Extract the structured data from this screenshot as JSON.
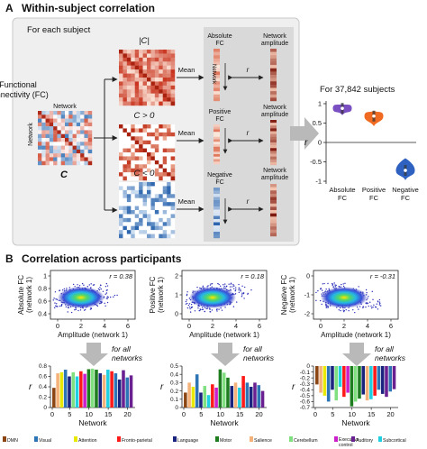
{
  "panel_a": {
    "letter": "A",
    "title": "Within-subject correlation",
    "box_title": "For each subject",
    "fc_label_line1": "Functional",
    "fc_label_line2": "connectivity (FC)",
    "matrix_axis": "Network",
    "c_symbol": "C",
    "abs_c_label": "|C|",
    "pos_c_label": "C > 0",
    "neg_c_label": "C < 0",
    "mean_label": "Mean",
    "r_symbol": "r",
    "abs_fc_line1": "Absolute",
    "abs_fc_line2": "FC",
    "pos_fc_line1": "Positive",
    "pos_fc_line2": "FC",
    "neg_fc_line1": "Negative",
    "neg_fc_line2": "FC",
    "net_amp_line1": "Network",
    "net_amp_line2": "amplitude",
    "network_vertical": "Network",
    "subjects_label": "For 37,842 subjects",
    "violin": {
      "yticks": [
        "1",
        "0.5",
        "0",
        "-0.5",
        "-1"
      ],
      "ylabel": "r",
      "xlabels": [
        [
          "Absolute",
          "FC"
        ],
        [
          "Positive",
          "FC"
        ],
        [
          "Negative",
          "FC"
        ]
      ],
      "medians": [
        0.88,
        0.68,
        -0.72
      ],
      "colors": [
        "#7a4fc2",
        "#f06a22",
        "#2f62c0"
      ]
    }
  },
  "panel_b": {
    "letter": "B",
    "title": "Correlation across participants",
    "for_all_line1": "for all",
    "for_all_line2": "networks",
    "scatter_xlabel": "Amplitude (network 1)",
    "scatter_xticks": [
      "0",
      "2",
      "4",
      "6"
    ],
    "scatters": [
      {
        "ylabel1": "Absolute FC",
        "ylabel2": "(network 1)",
        "r_text": "r = 0.38",
        "yticks": [
          "1",
          "0.8",
          "0.6",
          "0.4"
        ]
      },
      {
        "ylabel1": "Positive FC",
        "ylabel2": "(network 1)",
        "r_text": "r = 0.18",
        "yticks": [
          "2",
          "1",
          "0"
        ]
      },
      {
        "ylabel1": "Negative FC",
        "ylabel2": "(network 1)",
        "r_text": "r = -0.31",
        "yticks": [
          "0",
          "-1",
          "-2"
        ]
      }
    ],
    "bar_xlabel": "Network",
    "bar_ylabel": "r",
    "bar_xticks": [
      "0",
      "5",
      "10",
      "15",
      "20"
    ]
  },
  "legend": [
    {
      "label": "DMN",
      "color": "#8b4513"
    },
    {
      "label": "Visual",
      "color": "#2e75b6"
    },
    {
      "label": "Attention",
      "color": "#e8e800"
    },
    {
      "label": "Fronto-parietal",
      "color": "#ff1a1a"
    },
    {
      "label": "Language",
      "color": "#1a237e"
    },
    {
      "label": "Motor",
      "color": "#1e7d1e"
    },
    {
      "label": "Salience",
      "color": "#f4b27a"
    },
    {
      "label": "Cerebellum",
      "color": "#80e080"
    },
    {
      "label": "Executive control",
      "color": "#cc1fcc"
    },
    {
      "label": "Auditory",
      "color": "#6a2090"
    },
    {
      "label": "Subcortical",
      "color": "#20d0e0"
    }
  ],
  "chart_data": [
    {
      "type": "bar",
      "title": "",
      "xlabel": "Network",
      "ylabel": "r",
      "ylim": [
        0,
        0.8
      ],
      "yticks": [
        "0",
        "0.2",
        "0.4",
        "0.6",
        "0.8"
      ],
      "x": [
        1,
        2,
        3,
        4,
        5,
        6,
        7,
        8,
        9,
        10,
        11,
        12,
        13,
        14,
        15,
        16,
        17,
        18,
        19,
        20,
        21
      ],
      "values": [
        0.38,
        0.66,
        0.68,
        0.73,
        0.6,
        0.68,
        0.6,
        0.7,
        0.65,
        0.74,
        0.75,
        0.73,
        0.66,
        0.63,
        0.73,
        0.7,
        0.66,
        0.54,
        0.72,
        0.58,
        0.62
      ],
      "groups": [
        "DMN",
        "Salience",
        "Attention",
        "Visual",
        "Language",
        "Cerebellum",
        "Subcortical",
        "Fronto-parietal",
        "Executive control",
        "Motor",
        "Cerebellum",
        "Motor",
        "Language",
        "Salience",
        "Subcortical",
        "Fronto-parietal",
        "Visual",
        "Language",
        "Auditory",
        "Visual",
        "Auditory"
      ]
    },
    {
      "type": "bar",
      "title": "",
      "xlabel": "Network",
      "ylabel": "r",
      "ylim": [
        0,
        0.5
      ],
      "yticks": [
        "0",
        "0.1",
        "0.2",
        "0.3",
        "0.4",
        "0.5"
      ],
      "x": [
        1,
        2,
        3,
        4,
        5,
        6,
        7,
        8,
        9,
        10,
        11,
        12,
        13,
        14,
        15,
        16,
        17,
        18,
        19,
        20,
        21
      ],
      "values": [
        0.18,
        0.3,
        0.25,
        0.4,
        0.18,
        0.26,
        0.15,
        0.28,
        0.24,
        0.46,
        0.42,
        0.36,
        0.26,
        0.3,
        0.24,
        0.38,
        0.3,
        0.25,
        0.3,
        0.27,
        0.2
      ],
      "groups": [
        "DMN",
        "Salience",
        "Attention",
        "Visual",
        "Language",
        "Cerebellum",
        "Subcortical",
        "Fronto-parietal",
        "Executive control",
        "Motor",
        "Cerebellum",
        "Motor",
        "Language",
        "Salience",
        "Subcortical",
        "Fronto-parietal",
        "Visual",
        "Language",
        "Auditory",
        "Visual",
        "Auditory"
      ]
    },
    {
      "type": "bar",
      "title": "",
      "xlabel": "Network",
      "ylabel": "r",
      "ylim": [
        -0.7,
        0
      ],
      "yticks": [
        "0",
        "-0.1",
        "-0.2",
        "-0.3",
        "-0.4",
        "-0.5",
        "-0.6",
        "-0.7"
      ],
      "x": [
        1,
        2,
        3,
        4,
        5,
        6,
        7,
        8,
        9,
        10,
        11,
        12,
        13,
        14,
        15,
        16,
        17,
        18,
        19,
        20,
        21
      ],
      "values": [
        -0.31,
        -0.45,
        -0.5,
        -0.6,
        -0.4,
        -0.58,
        -0.35,
        -0.52,
        -0.45,
        -0.68,
        -0.6,
        -0.55,
        -0.48,
        -0.58,
        -0.56,
        -0.5,
        -0.4,
        -0.47,
        -0.52,
        -0.43,
        -0.39
      ],
      "groups": [
        "DMN",
        "Salience",
        "Attention",
        "Visual",
        "Language",
        "Cerebellum",
        "Subcortical",
        "Fronto-parietal",
        "Executive control",
        "Motor",
        "Cerebellum",
        "Motor",
        "Language",
        "Salience",
        "Subcortical",
        "Fronto-parietal",
        "Visual",
        "Language",
        "Auditory",
        "Visual",
        "Auditory"
      ]
    }
  ]
}
